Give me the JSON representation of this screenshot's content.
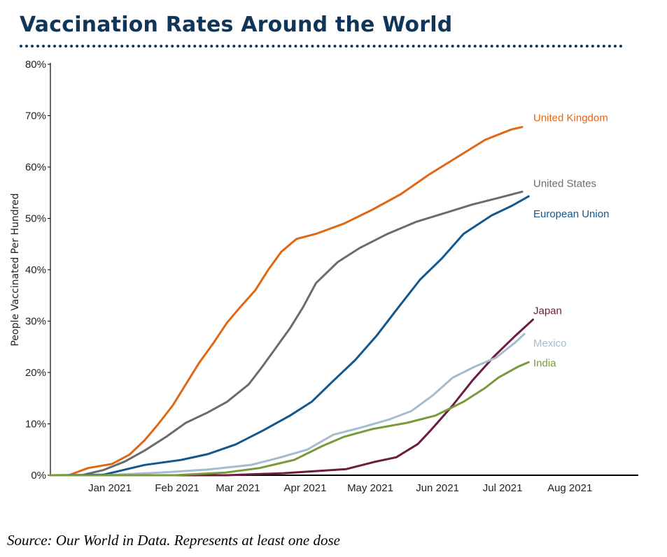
{
  "title": "Vaccination Rates Around the World",
  "source_note": "Source: Our World in Data. Represents at least one dose",
  "chart_data": {
    "type": "line",
    "title": "Vaccination Rates Around the World",
    "xlabel": "",
    "ylabel": "People Vaccinated Per Hundred",
    "ylim": [
      0,
      80
    ],
    "xlim": [
      "2020-12-04",
      "2021-08-31"
    ],
    "yticks": [
      0,
      10,
      20,
      30,
      40,
      50,
      60,
      70,
      80
    ],
    "ytick_labels": [
      "0%",
      "10%",
      "20%",
      "30%",
      "40%",
      "50%",
      "60%",
      "70%",
      "80%"
    ],
    "xticks": [
      "2021-01-01",
      "2021-02-01",
      "2021-03-01",
      "2021-04-01",
      "2021-05-01",
      "2021-06-01",
      "2021-07-01",
      "2021-08-01"
    ],
    "xtick_labels": [
      "Jan 2021",
      "Feb 2021",
      "Mar 2021",
      "Apr 2021",
      "May 2021",
      "Jun 2021",
      "Jul 2021",
      "Aug 2021"
    ],
    "grid": false,
    "legend": "direct labels at line ends (right)",
    "series": [
      {
        "name": "United Kingdom",
        "color": "#e06714",
        "x": [
          "2020-12-13",
          "2020-12-22",
          "2021-01-02",
          "2021-01-10",
          "2021-01-17",
          "2021-01-23",
          "2021-01-30",
          "2021-02-05",
          "2021-02-11",
          "2021-02-18",
          "2021-02-24",
          "2021-03-02",
          "2021-03-09",
          "2021-03-15",
          "2021-03-21",
          "2021-03-28",
          "2021-04-06",
          "2021-04-19",
          "2021-05-02",
          "2021-05-15",
          "2021-05-28",
          "2021-06-10",
          "2021-06-23",
          "2021-07-05",
          "2021-07-10"
        ],
        "values": [
          0,
          1.4,
          2.2,
          4.0,
          6.8,
          9.8,
          13.6,
          17.7,
          21.8,
          25.9,
          29.7,
          32.7,
          36.0,
          40.0,
          43.5,
          46.0,
          47.0,
          49.0,
          51.7,
          54.7,
          58.5,
          61.9,
          65.3,
          67.3,
          67.8
        ]
      },
      {
        "name": "United States",
        "color": "#6b6b6b",
        "x": [
          "2020-12-19",
          "2020-12-29",
          "2021-01-08",
          "2021-01-17",
          "2021-01-27",
          "2021-02-05",
          "2021-02-15",
          "2021-02-24",
          "2021-03-06",
          "2021-03-12",
          "2021-03-18",
          "2021-03-25",
          "2021-03-31",
          "2021-04-06",
          "2021-04-16",
          "2021-04-26",
          "2021-05-09",
          "2021-05-22",
          "2021-06-04",
          "2021-06-17",
          "2021-06-30",
          "2021-07-10"
        ],
        "values": [
          0,
          1.0,
          2.7,
          4.8,
          7.5,
          10.2,
          12.2,
          14.3,
          17.7,
          21.0,
          24.5,
          28.6,
          32.7,
          37.4,
          41.5,
          44.2,
          47.0,
          49.3,
          51.0,
          52.7,
          54.1,
          55.2
        ]
      },
      {
        "name": "European Union",
        "color": "#14578c",
        "x": [
          "2020-12-29",
          "2021-01-08",
          "2021-01-17",
          "2021-02-03",
          "2021-02-15",
          "2021-02-28",
          "2021-03-13",
          "2021-03-25",
          "2021-04-04",
          "2021-04-14",
          "2021-04-24",
          "2021-05-04",
          "2021-05-14",
          "2021-05-24",
          "2021-06-03",
          "2021-06-13",
          "2021-06-26",
          "2021-07-05",
          "2021-07-13"
        ],
        "values": [
          0.1,
          1.1,
          2.0,
          3.0,
          4.1,
          6.0,
          8.8,
          11.6,
          14.3,
          18.4,
          22.4,
          27.2,
          32.7,
          38.1,
          42.2,
          47.0,
          50.6,
          52.4,
          54.3
        ]
      },
      {
        "name": "Japan",
        "color": "#6b1c42",
        "x": [
          "2021-02-24",
          "2021-03-22",
          "2021-04-20",
          "2021-05-03",
          "2021-05-13",
          "2021-05-23",
          "2021-05-29",
          "2021-06-08",
          "2021-06-17",
          "2021-06-27",
          "2021-07-07",
          "2021-07-15"
        ],
        "values": [
          0,
          0.4,
          1.2,
          2.6,
          3.5,
          6.1,
          8.8,
          13.6,
          18.4,
          23.1,
          27.2,
          30.3
        ]
      },
      {
        "name": "Mexico",
        "color": "#a5bccd",
        "x": [
          "2020-12-29",
          "2021-01-24",
          "2021-02-15",
          "2021-03-07",
          "2021-03-20",
          "2021-04-02",
          "2021-04-14",
          "2021-04-27",
          "2021-05-10",
          "2021-05-20",
          "2021-05-30",
          "2021-06-08",
          "2021-06-18",
          "2021-06-28",
          "2021-07-07",
          "2021-07-11"
        ],
        "values": [
          0,
          0.5,
          1.1,
          2.0,
          3.4,
          5.0,
          7.9,
          9.3,
          10.9,
          12.5,
          15.6,
          19.0,
          21.1,
          22.9,
          25.9,
          27.5
        ]
      },
      {
        "name": "India",
        "color": "#7a9a3a",
        "x": [
          "2021-01-31",
          "2021-02-23",
          "2021-03-11",
          "2021-03-27",
          "2021-04-09",
          "2021-04-19",
          "2021-05-02",
          "2021-05-18",
          "2021-05-31",
          "2021-06-13",
          "2021-06-23",
          "2021-06-29",
          "2021-07-08",
          "2021-07-13"
        ],
        "values": [
          0,
          0.5,
          1.4,
          3.0,
          5.7,
          7.5,
          9.0,
          10.2,
          11.6,
          14.3,
          17.0,
          19.0,
          21.1,
          22.0
        ]
      }
    ]
  }
}
